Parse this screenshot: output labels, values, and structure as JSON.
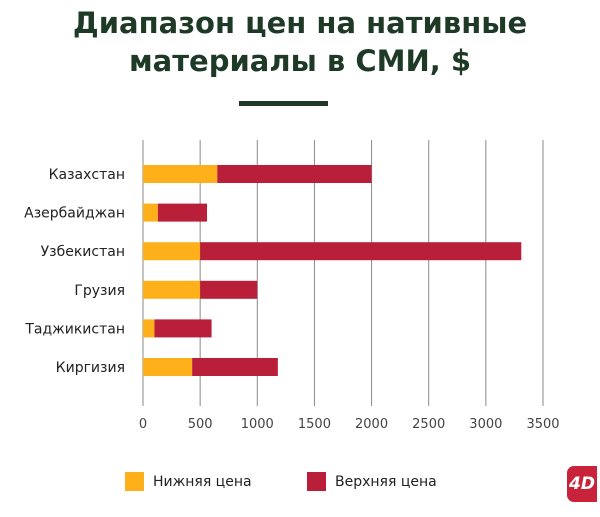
{
  "title_line1": "Диапазон цен на нативные",
  "title_line2": "материалы в СМИ, $",
  "colors": {
    "lower": "#fdb01a",
    "upper": "#b91f38",
    "title": "#1e3a27"
  },
  "logo": {
    "text": "4D",
    "icon": "4d-logo-icon"
  },
  "chart_data": {
    "type": "bar",
    "orientation": "horizontal",
    "stacked": true,
    "title": "Диапазон цен на нативные материалы в СМИ, $",
    "categories": [
      "Казахстан",
      "Азербайджан",
      "Узбекистан",
      "Грузия",
      "Таджикистан",
      "Киргизия"
    ],
    "series": [
      {
        "name": "Нижняя цена",
        "values": [
          650,
          130,
          500,
          500,
          100,
          430
        ]
      },
      {
        "name": "Верхняя цена",
        "values": [
          1350,
          430,
          2810,
          500,
          500,
          750
        ]
      }
    ],
    "xlim": [
      0,
      3500
    ],
    "xticks": [
      0,
      500,
      1000,
      1500,
      2000,
      2500,
      3000,
      3500
    ],
    "xlabel": "",
    "ylabel": "",
    "grid": "vertical",
    "legend_position": "bottom"
  }
}
